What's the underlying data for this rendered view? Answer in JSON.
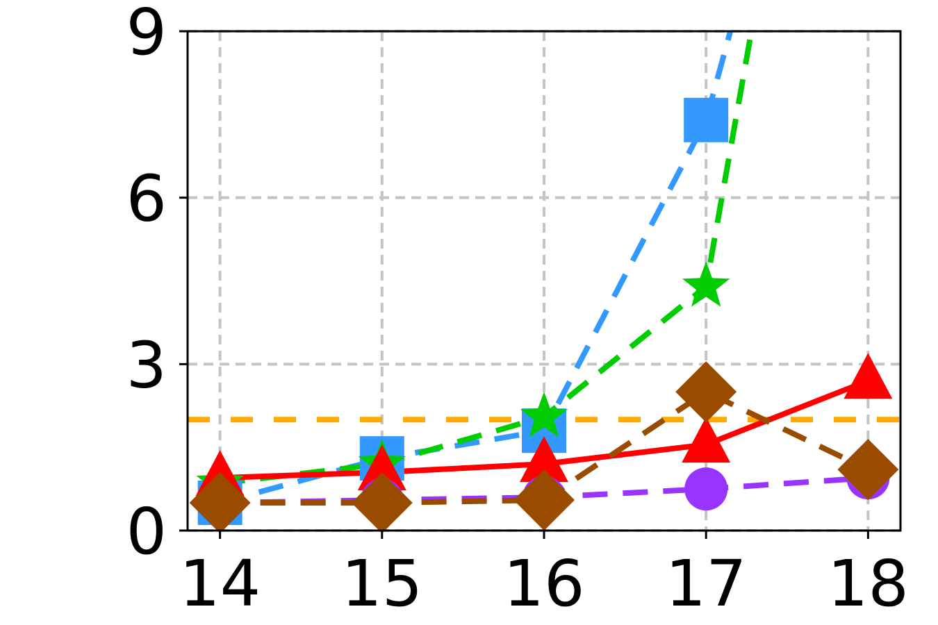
{
  "chart_data": {
    "type": "line",
    "title": "",
    "xlabel": "",
    "ylabel": "",
    "x": [
      14,
      15,
      16,
      17,
      18
    ],
    "xlim": [
      13.8,
      18.2
    ],
    "ylim": [
      0,
      9
    ],
    "x_ticks": [
      14,
      15,
      16,
      17,
      18
    ],
    "y_ticks": [
      0,
      3,
      6,
      9
    ],
    "grid": true,
    "legend": "none",
    "series": [
      {
        "color": "#ffaa00",
        "line": "dashed",
        "marker": "none",
        "x": [
          13.8,
          18.2
        ],
        "values": [
          2.0,
          2.0
        ]
      },
      {
        "color": "#3399ff",
        "line": "dashed",
        "marker": "square",
        "x": [
          14,
          15,
          16,
          17,
          17.15
        ],
        "values": [
          0.5,
          1.3,
          1.8,
          7.4,
          9.0
        ]
      },
      {
        "color": "#00cc00",
        "line": "dashed",
        "marker": "star",
        "x": [
          14,
          15,
          16,
          17,
          17.28
        ],
        "values": [
          0.85,
          1.2,
          2.05,
          4.4,
          9.0
        ]
      },
      {
        "color": "#ff0000",
        "line": "solid",
        "marker": "triangle",
        "x": [
          14,
          15,
          16,
          17,
          18
        ],
        "values": [
          0.95,
          1.05,
          1.2,
          1.55,
          2.7
        ]
      },
      {
        "color": "#9933ff",
        "line": "dashed",
        "marker": "circle",
        "x": [
          14,
          15,
          16,
          17,
          18
        ],
        "values": [
          0.5,
          0.55,
          0.6,
          0.75,
          0.95
        ]
      },
      {
        "color": "#994c00",
        "line": "dashed",
        "marker": "diamond",
        "x": [
          14,
          15,
          16,
          17,
          18
        ],
        "values": [
          0.5,
          0.5,
          0.55,
          2.5,
          1.1
        ]
      }
    ]
  }
}
